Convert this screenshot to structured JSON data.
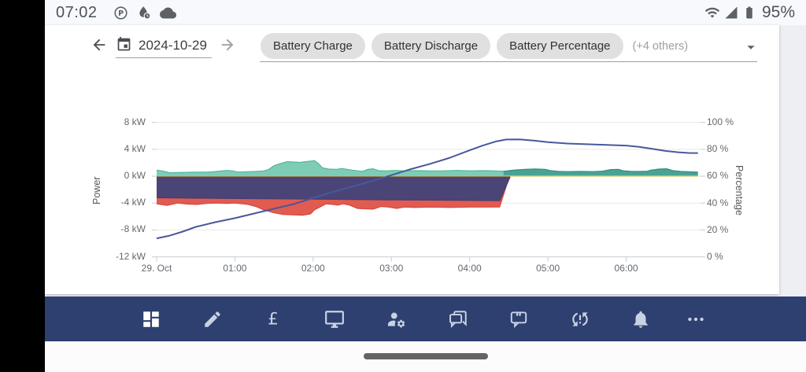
{
  "colors": {
    "status_bar": "#f7f9fc",
    "page_bg": "#edeff3",
    "card": "#ffffff",
    "chip": "#e0e0e0",
    "navbar": "#2d4070"
  },
  "status_bar": {
    "time": "07:02",
    "battery_text": "95%",
    "left_icons": [
      "pinterest",
      "drop-clock",
      "cloud"
    ],
    "right_icons": [
      "wifi",
      "cellular-signal",
      "battery"
    ]
  },
  "toolbar": {
    "date": "2024-10-29",
    "others_label": "(+4 others)",
    "chips": [
      {
        "label": "Battery Charge"
      },
      {
        "label": "Battery Discharge"
      },
      {
        "label": "Battery Percentage"
      }
    ]
  },
  "chart_data": {
    "type": "area",
    "grid": true,
    "legend_chips": [
      "Battery Charge",
      "Battery Discharge",
      "Battery Percentage"
    ],
    "hidden_series_note": "(+4 others)",
    "x_axis": {
      "tick_labels": [
        "29. Oct",
        "01:00",
        "02:00",
        "03:00",
        "04:00",
        "05:00",
        "06:00"
      ],
      "tick_minutes": [
        0,
        60,
        120,
        180,
        240,
        300,
        360
      ],
      "range_minutes": [
        0,
        417
      ]
    },
    "left_axis": {
      "title": "Power",
      "tick_labels": [
        "8 kW",
        "4 kW",
        "0 kW",
        "-4 kW",
        "-8 kW",
        "-12 kW"
      ],
      "tick_values": [
        8,
        4,
        0,
        -4,
        -8,
        -12
      ]
    },
    "right_axis": {
      "title": "Percentage",
      "tick_labels": [
        "100 %",
        "80 %",
        "60 %",
        "40 %",
        "20 %",
        "0 %"
      ],
      "tick_values": [
        100,
        80,
        60,
        40,
        20,
        0
      ]
    },
    "series": [
      {
        "name": "power-area-teal-light",
        "kind": "area",
        "axis": "left",
        "fill": "#7fccb4",
        "stroke": "#52b79b",
        "width": 1.2,
        "points": [
          [
            0,
            0.9
          ],
          [
            5,
            0.75
          ],
          [
            10,
            0.52
          ],
          [
            20,
            0.56
          ],
          [
            30,
            0.6
          ],
          [
            40,
            0.6
          ],
          [
            48,
            0.75
          ],
          [
            54,
            0.85
          ],
          [
            58,
            0.8
          ],
          [
            62,
            0.62
          ],
          [
            70,
            0.65
          ],
          [
            76,
            0.7
          ],
          [
            82,
            0.78
          ],
          [
            86,
            1.0
          ],
          [
            90,
            1.55
          ],
          [
            95,
            1.9
          ],
          [
            100,
            2.15
          ],
          [
            105,
            2.1
          ],
          [
            110,
            2.05
          ],
          [
            114,
            2.15
          ],
          [
            118,
            2.25
          ],
          [
            121,
            2.3
          ],
          [
            124,
            1.9
          ],
          [
            127,
            1.25
          ],
          [
            132,
            1.05
          ],
          [
            138,
            1.0
          ],
          [
            142,
            1.15
          ],
          [
            146,
            1.0
          ],
          [
            150,
            0.9
          ],
          [
            154,
            0.8
          ],
          [
            158,
            0.72
          ],
          [
            162,
            1.0
          ],
          [
            166,
            1.1
          ],
          [
            170,
            0.82
          ],
          [
            176,
            0.78
          ],
          [
            182,
            0.85
          ],
          [
            190,
            0.8
          ],
          [
            200,
            0.82
          ],
          [
            210,
            0.78
          ],
          [
            220,
            0.8
          ],
          [
            230,
            0.85
          ],
          [
            240,
            0.8
          ],
          [
            250,
            0.82
          ],
          [
            258,
            0.8
          ],
          [
            264,
            0.75
          ],
          [
            270,
            0.72
          ],
          [
            280,
            0.68
          ],
          [
            290,
            0.64
          ],
          [
            300,
            0.6
          ],
          [
            320,
            0.62
          ],
          [
            340,
            0.6
          ],
          [
            360,
            0.62
          ],
          [
            380,
            0.6
          ],
          [
            400,
            0.58
          ],
          [
            415,
            0.55
          ]
        ]
      },
      {
        "name": "power-area-teal-dark",
        "kind": "area",
        "axis": "left",
        "fill": "#49a393",
        "stroke": "#378d80",
        "width": 1.2,
        "points": [
          [
            266,
            0.7
          ],
          [
            270,
            0.82
          ],
          [
            275,
            0.92
          ],
          [
            282,
            1.02
          ],
          [
            290,
            1.06
          ],
          [
            298,
            1.0
          ],
          [
            302,
            0.82
          ],
          [
            308,
            0.72
          ],
          [
            315,
            0.68
          ],
          [
            325,
            0.7
          ],
          [
            335,
            0.68
          ],
          [
            342,
            0.75
          ],
          [
            348,
            0.98
          ],
          [
            354,
            1.0
          ],
          [
            358,
            0.8
          ],
          [
            364,
            0.72
          ],
          [
            370,
            0.7
          ],
          [
            376,
            0.74
          ],
          [
            379,
            0.9
          ],
          [
            385,
            1.05
          ],
          [
            391,
            1.1
          ],
          [
            396,
            0.82
          ],
          [
            402,
            0.7
          ],
          [
            408,
            0.65
          ],
          [
            415,
            0.6
          ]
        ]
      },
      {
        "name": "power-area-red",
        "kind": "area",
        "axis": "left",
        "fill": "#e25b51",
        "stroke": "#d6473d",
        "width": 1.2,
        "points": [
          [
            0,
            -4.1
          ],
          [
            8,
            -4.35
          ],
          [
            16,
            -4.0
          ],
          [
            24,
            -4.15
          ],
          [
            31,
            -4.2
          ],
          [
            38,
            -4.05
          ],
          [
            46,
            -4.0
          ],
          [
            54,
            -4.05
          ],
          [
            60,
            -4.0
          ],
          [
            66,
            -4.1
          ],
          [
            70,
            -4.2
          ],
          [
            76,
            -4.5
          ],
          [
            82,
            -5.0
          ],
          [
            90,
            -5.45
          ],
          [
            97,
            -5.7
          ],
          [
            104,
            -5.75
          ],
          [
            112,
            -5.8
          ],
          [
            118,
            -5.6
          ],
          [
            121,
            -5.0
          ],
          [
            124,
            -4.7
          ],
          [
            130,
            -4.1
          ],
          [
            135,
            -4.2
          ],
          [
            139,
            -4.3
          ],
          [
            143,
            -4.1
          ],
          [
            148,
            -4.3
          ],
          [
            154,
            -4.8
          ],
          [
            160,
            -4.85
          ],
          [
            166,
            -4.9
          ],
          [
            172,
            -4.5
          ],
          [
            178,
            -4.6
          ],
          [
            184,
            -4.8
          ],
          [
            190,
            -4.6
          ],
          [
            198,
            -4.65
          ],
          [
            210,
            -4.6
          ],
          [
            225,
            -4.65
          ],
          [
            240,
            -4.6
          ],
          [
            255,
            -4.6
          ],
          [
            263,
            -4.58
          ],
          [
            270,
            -0.3
          ]
        ]
      },
      {
        "name": "power-band-purple",
        "kind": "area",
        "axis": "left",
        "fill": "#4b4577",
        "stroke": "#433e6d",
        "width": 1.2,
        "points": [
          [
            0,
            -3.2
          ],
          [
            60,
            -3.32
          ],
          [
            120,
            -3.42
          ],
          [
            180,
            -3.52
          ],
          [
            240,
            -3.6
          ],
          [
            263,
            -3.65
          ],
          [
            271,
            -0.1
          ]
        ]
      },
      {
        "name": "zero-line-yellow",
        "kind": "line",
        "axis": "left",
        "stroke": "#c6bd5a",
        "width": 1.5,
        "points": [
          [
            0,
            0.03
          ],
          [
            415,
            0.03
          ]
        ]
      },
      {
        "name": "battery-percentage-line",
        "kind": "line",
        "axis": "right",
        "stroke": "#47599b",
        "width": 2,
        "points": [
          [
            0,
            14
          ],
          [
            10,
            16
          ],
          [
            20,
            19
          ],
          [
            30,
            22.5
          ],
          [
            45,
            26
          ],
          [
            60,
            29
          ],
          [
            75,
            32.5
          ],
          [
            90,
            36
          ],
          [
            105,
            39.5
          ],
          [
            120,
            44
          ],
          [
            135,
            48.5
          ],
          [
            150,
            52.5
          ],
          [
            165,
            56.5
          ],
          [
            180,
            61
          ],
          [
            195,
            65.5
          ],
          [
            210,
            69.5
          ],
          [
            225,
            74
          ],
          [
            240,
            79.5
          ],
          [
            250,
            83
          ],
          [
            260,
            86
          ],
          [
            268,
            87.5
          ],
          [
            278,
            87.6
          ],
          [
            290,
            86.6
          ],
          [
            300,
            85.5
          ],
          [
            315,
            84.5
          ],
          [
            330,
            84
          ],
          [
            345,
            83.5
          ],
          [
            360,
            83
          ],
          [
            370,
            82
          ],
          [
            380,
            80.5
          ],
          [
            390,
            79
          ],
          [
            400,
            78
          ],
          [
            408,
            77.5
          ],
          [
            415,
            77.4
          ]
        ]
      }
    ]
  },
  "nav": {
    "items": [
      {
        "name": "dashboard",
        "active": true
      },
      {
        "name": "edit",
        "active": false
      },
      {
        "name": "currency-pound",
        "active": false
      },
      {
        "name": "monitor",
        "active": false
      },
      {
        "name": "user-settings",
        "active": false
      },
      {
        "name": "chat",
        "active": false
      },
      {
        "name": "feedback",
        "active": false
      },
      {
        "name": "sync-problem",
        "active": false
      },
      {
        "name": "notifications",
        "active": false
      },
      {
        "name": "more",
        "active": false
      }
    ]
  }
}
